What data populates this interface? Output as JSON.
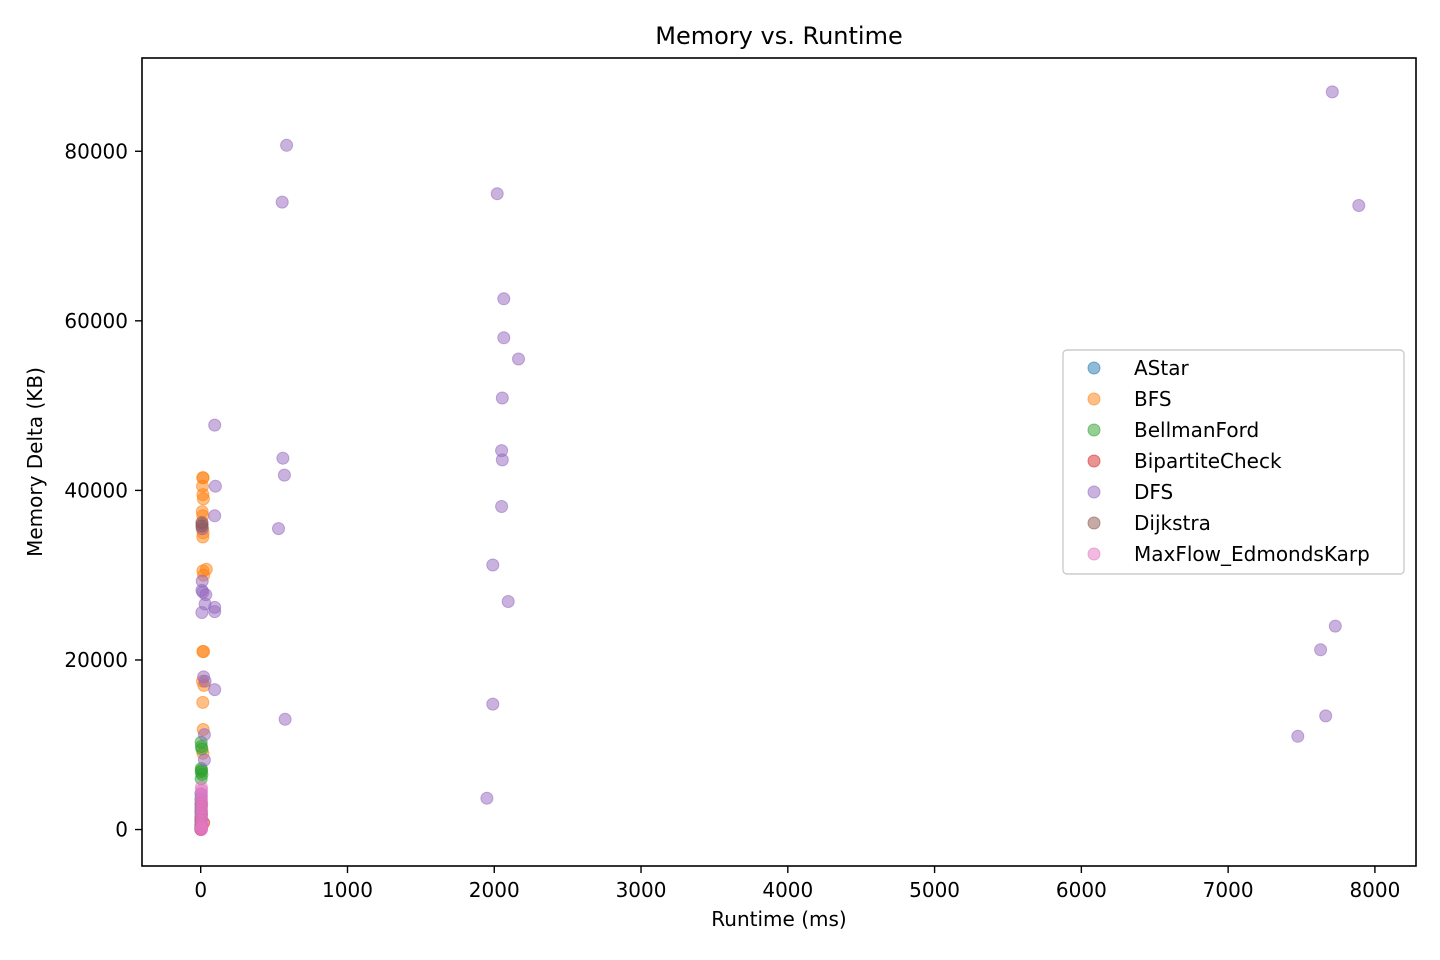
{
  "chart_data": {
    "type": "scatter",
    "title": "Memory vs. Runtime",
    "xlabel": "Runtime (ms)",
    "ylabel": "Memory Delta (KB)",
    "xlim": [
      -400,
      8280
    ],
    "ylim": [
      -4300,
      91000
    ],
    "xticks": [
      0,
      1000,
      2000,
      3000,
      4000,
      5000,
      6000,
      7000,
      8000
    ],
    "yticks": [
      0,
      20000,
      40000,
      60000,
      80000
    ],
    "grid": false,
    "legend_position": "center-right",
    "series": [
      {
        "name": "AStar",
        "color": "#1f77b4",
        "points": [
          [
            1,
            4200
          ],
          [
            1,
            3600
          ],
          [
            1,
            3000
          ],
          [
            1,
            2500
          ],
          [
            1,
            2000
          ],
          [
            1,
            1500
          ],
          [
            1,
            1000
          ],
          [
            1,
            600
          ],
          [
            1,
            300
          ],
          [
            1,
            100
          ],
          [
            1,
            0
          ]
        ]
      },
      {
        "name": "BFS",
        "color": "#ff7f0e",
        "points": [
          [
            14,
            41500
          ],
          [
            16,
            41500
          ],
          [
            12,
            40500
          ],
          [
            15,
            39500
          ],
          [
            18,
            39000
          ],
          [
            10,
            37500
          ],
          [
            14,
            37000
          ],
          [
            12,
            35500
          ],
          [
            16,
            35000
          ],
          [
            14,
            34500
          ],
          [
            15,
            30500
          ],
          [
            38,
            30700
          ],
          [
            20,
            30000
          ],
          [
            14,
            21000
          ],
          [
            20,
            21000
          ],
          [
            12,
            17500
          ],
          [
            22,
            17000
          ],
          [
            14,
            15000
          ],
          [
            17,
            11800
          ],
          [
            15,
            9000
          ]
        ]
      },
      {
        "name": "BellmanFord",
        "color": "#2ca02c",
        "points": [
          [
            3,
            10300
          ],
          [
            5,
            9800
          ],
          [
            8,
            9500
          ],
          [
            4,
            7200
          ],
          [
            6,
            7000
          ],
          [
            3,
            6800
          ],
          [
            8,
            6500
          ],
          [
            3,
            6000
          ]
        ]
      },
      {
        "name": "BipartiteCheck",
        "color": "#d62728",
        "points": [
          [
            2,
            1200
          ],
          [
            20,
            800
          ],
          [
            3,
            500
          ],
          [
            4,
            100
          ],
          [
            2,
            0
          ]
        ]
      },
      {
        "name": "DFS",
        "color": "#9467bd",
        "points": [
          [
            7710,
            87000
          ],
          [
            585,
            80700
          ],
          [
            7890,
            73600
          ],
          [
            555,
            74000
          ],
          [
            2020,
            75000
          ],
          [
            2065,
            62600
          ],
          [
            2065,
            58000
          ],
          [
            2165,
            55500
          ],
          [
            2055,
            50900
          ],
          [
            95,
            47700
          ],
          [
            560,
            43800
          ],
          [
            2050,
            44700
          ],
          [
            2055,
            43600
          ],
          [
            570,
            41800
          ],
          [
            100,
            40500
          ],
          [
            2050,
            38100
          ],
          [
            95,
            37000
          ],
          [
            530,
            35500
          ],
          [
            10,
            36000
          ],
          [
            10,
            35500
          ],
          [
            1990,
            31200
          ],
          [
            10,
            29300
          ],
          [
            8,
            28200
          ],
          [
            15,
            28000
          ],
          [
            35,
            27700
          ],
          [
            2095,
            26900
          ],
          [
            30,
            26600
          ],
          [
            95,
            26200
          ],
          [
            95,
            25700
          ],
          [
            8,
            25600
          ],
          [
            7730,
            24000
          ],
          [
            7630,
            21200
          ],
          [
            20,
            18000
          ],
          [
            30,
            17500
          ],
          [
            95,
            16500
          ],
          [
            1990,
            14800
          ],
          [
            575,
            13000
          ],
          [
            7665,
            13400
          ],
          [
            7475,
            11000
          ],
          [
            25,
            11200
          ],
          [
            25,
            8200
          ],
          [
            1950,
            3700
          ]
        ]
      },
      {
        "name": "Dijkstra",
        "color": "#8c564b",
        "points": [
          [
            8,
            36200
          ],
          [
            8,
            35800
          ],
          [
            4,
            3200
          ],
          [
            5,
            2800
          ],
          [
            3,
            2200
          ],
          [
            6,
            1800
          ],
          [
            4,
            1200
          ],
          [
            3,
            600
          ],
          [
            2,
            200
          ]
        ]
      },
      {
        "name": "MaxFlow_EdmondsKarp",
        "color": "#e377c2",
        "points": [
          [
            5,
            5000
          ],
          [
            6,
            4600
          ],
          [
            5,
            4200
          ],
          [
            6,
            3800
          ],
          [
            5,
            3400
          ],
          [
            7,
            3000
          ],
          [
            5,
            2600
          ],
          [
            6,
            2200
          ],
          [
            5,
            1800
          ],
          [
            6,
            1400
          ],
          [
            5,
            1000
          ],
          [
            6,
            600
          ],
          [
            5,
            300
          ],
          [
            6,
            100
          ],
          [
            5,
            0
          ],
          [
            4,
            50
          ]
        ]
      }
    ]
  }
}
